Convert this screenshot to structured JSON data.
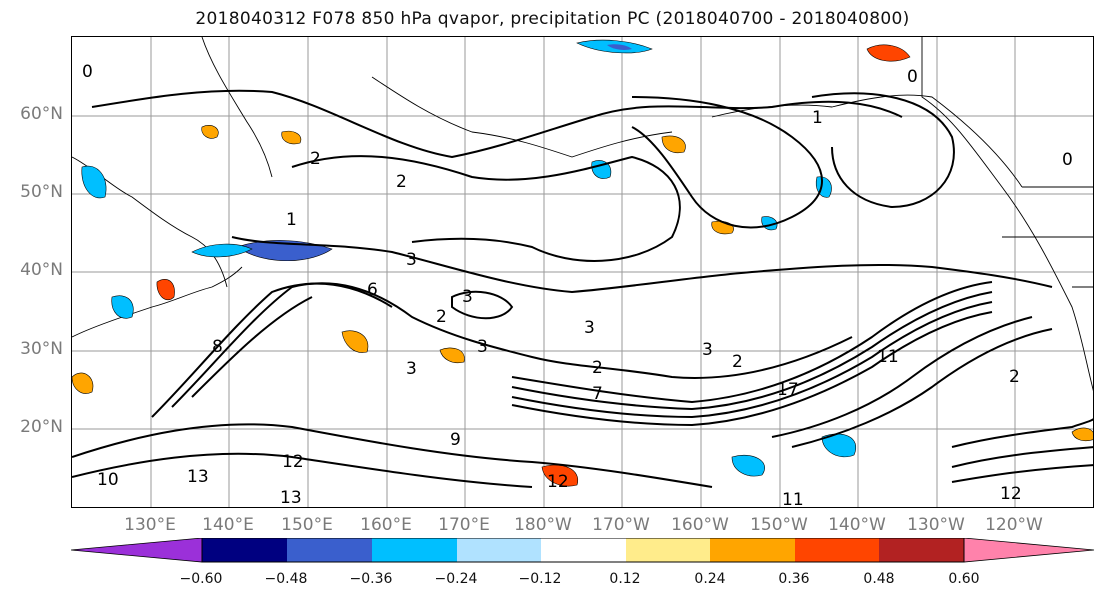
{
  "title": "2018040312 F078 850 hPa qvapor, precipitation PC (2018040700 - 2018040800)",
  "map": {
    "lat_labels": [
      "60°N",
      "50°N",
      "40°N",
      "30°N",
      "20°N"
    ],
    "lon_labels": [
      "130°E",
      "140°E",
      "150°E",
      "160°E",
      "170°E",
      "180°W",
      "170°W",
      "160°W",
      "150°W",
      "140°W",
      "130°W",
      "120°W"
    ],
    "contour_labels": [
      "0",
      "2",
      "2",
      "1",
      "3",
      "3",
      "2",
      "6",
      "3",
      "3",
      "2",
      "3",
      "8",
      "9",
      "12",
      "13",
      "13",
      "12",
      "2",
      "3",
      "2",
      "7",
      "11",
      "17",
      "12",
      "11",
      "1",
      "0",
      "0",
      "10"
    ]
  },
  "colorbar": {
    "colors": [
      "#9b30d9",
      "#000080",
      "#3a5fcd",
      "#00bfff",
      "#b0e2ff",
      "#ffffff",
      "#ffec8b",
      "#ffa500",
      "#ff4500",
      "#b22222",
      "#ff82ab"
    ],
    "tick_labels": [
      "−0.60",
      "−0.48",
      "−0.36",
      "−0.24",
      "−0.12",
      "0.12",
      "0.24",
      "0.36",
      "0.48",
      "0.60"
    ]
  }
}
